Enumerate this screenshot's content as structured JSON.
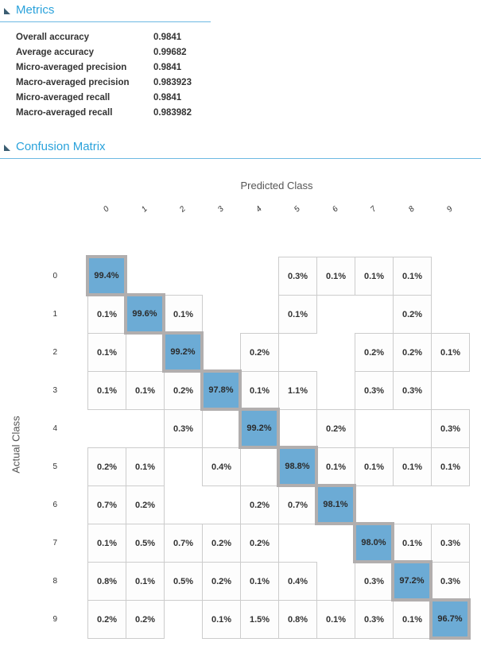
{
  "colors": {
    "accent_blue": "#2aa2db",
    "rule_blue": "#6db9e2",
    "diagonal_fill": "#6cabd5",
    "diagonal_border": "#b1aeae",
    "cell_border": "#cccccc",
    "cell_text": "#333333",
    "axis_text": "#555555"
  },
  "metrics": {
    "title": "Metrics",
    "items": [
      {
        "label": "Overall accuracy",
        "value": "0.9841"
      },
      {
        "label": "Average accuracy",
        "value": "0.99682"
      },
      {
        "label": "Micro-averaged precision",
        "value": "0.9841"
      },
      {
        "label": "Macro-averaged precision",
        "value": "0.983923"
      },
      {
        "label": "Micro-averaged recall",
        "value": "0.9841"
      },
      {
        "label": "Macro-averaged recall",
        "value": "0.983982"
      }
    ]
  },
  "confusion": {
    "title": "Confusion Matrix"
  },
  "chart_data": {
    "type": "heatmap",
    "title": "Confusion Matrix",
    "xlabel": "Predicted Class",
    "ylabel": "Actual Class",
    "unit": "%",
    "col_labels": [
      "0",
      "1",
      "2",
      "3",
      "4",
      "5",
      "6",
      "7",
      "8",
      "9"
    ],
    "row_labels": [
      "0",
      "1",
      "2",
      "3",
      "4",
      "5",
      "6",
      "7",
      "8",
      "9"
    ],
    "cells": [
      [
        99.4,
        null,
        null,
        null,
        null,
        0.3,
        0.1,
        0.1,
        0.1,
        null
      ],
      [
        0.1,
        99.6,
        0.1,
        null,
        null,
        0.1,
        null,
        null,
        0.2,
        null
      ],
      [
        0.1,
        null,
        99.2,
        null,
        0.2,
        null,
        null,
        0.2,
        0.2,
        0.1
      ],
      [
        0.1,
        0.1,
        0.2,
        97.8,
        0.1,
        1.1,
        null,
        0.3,
        0.3,
        null
      ],
      [
        null,
        null,
        0.3,
        null,
        99.2,
        null,
        0.2,
        null,
        null,
        0.3
      ],
      [
        0.2,
        0.1,
        null,
        0.4,
        null,
        98.8,
        0.1,
        0.1,
        0.1,
        0.1
      ],
      [
        0.7,
        0.2,
        null,
        null,
        0.2,
        0.7,
        98.1,
        null,
        null,
        null
      ],
      [
        0.1,
        0.5,
        0.7,
        0.2,
        0.2,
        null,
        null,
        98.0,
        0.1,
        0.3
      ],
      [
        0.8,
        0.1,
        0.5,
        0.2,
        0.1,
        0.4,
        null,
        0.3,
        97.2,
        0.3
      ],
      [
        0.2,
        0.2,
        null,
        0.1,
        1.5,
        0.8,
        0.1,
        0.3,
        0.1,
        96.7
      ]
    ]
  }
}
